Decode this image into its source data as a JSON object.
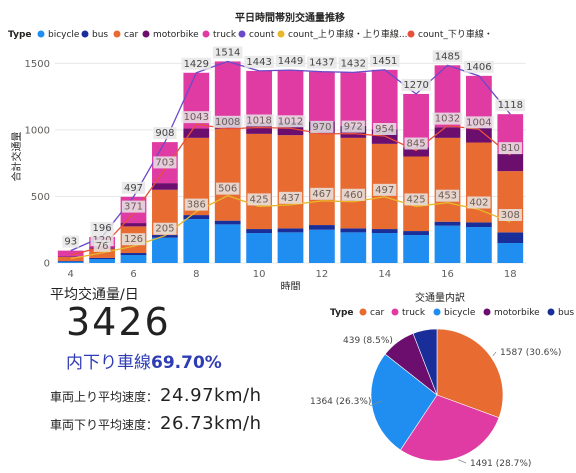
{
  "stack_chart": {
    "title": "平日時間帯別交通量推移",
    "legend_title": "Type",
    "legend": [
      {
        "label": "bicycle",
        "color": "#1f8ef0"
      },
      {
        "label": "bus",
        "color": "#1a2e9a"
      },
      {
        "label": "car",
        "color": "#e86b32"
      },
      {
        "label": "motorbike",
        "color": "#6b0e6e"
      },
      {
        "label": "truck",
        "color": "#e03aa3"
      },
      {
        "label": "count",
        "color": "#6b4ac8"
      },
      {
        "label": "count_上り車線・上り車線...",
        "color": "#e8b62a"
      },
      {
        "label": "count_下り車線・",
        "color": "#e8503a"
      }
    ],
    "ylabel": "合計交通量",
    "xlabel": "時間"
  },
  "chart_data": [
    {
      "type": "bar",
      "title": "平日時間帯別交通量推移",
      "xlabel": "時間",
      "ylabel": "合計交通量",
      "ylim": [
        0,
        1600
      ],
      "yticks": [
        0,
        500,
        1000,
        1500
      ],
      "xticks": [
        4,
        6,
        8,
        10,
        12,
        14,
        16,
        18
      ],
      "x": [
        4,
        5,
        6,
        7,
        8,
        9,
        10,
        11,
        12,
        13,
        14,
        15,
        16,
        17,
        18
      ],
      "stacked": true,
      "series": [
        {
          "name": "bicycle",
          "color": "#1f8ef0",
          "values": [
            10,
            30,
            60,
            190,
            330,
            290,
            225,
            230,
            250,
            230,
            225,
            210,
            280,
            270,
            150
          ]
        },
        {
          "name": "bus",
          "color": "#1a2e9a",
          "values": [
            5,
            8,
            15,
            20,
            30,
            28,
            30,
            30,
            35,
            30,
            30,
            30,
            30,
            35,
            80
          ]
        },
        {
          "name": "car",
          "color": "#e86b32",
          "values": [
            30,
            70,
            200,
            340,
            580,
            690,
            715,
            700,
            690,
            680,
            640,
            560,
            630,
            600,
            460
          ]
        },
        {
          "name": "motorbike",
          "color": "#6b0e6e",
          "values": [
            5,
            10,
            25,
            50,
            70,
            90,
            80,
            100,
            90,
            90,
            110,
            70,
            80,
            110,
            130
          ]
        },
        {
          "name": "truck",
          "color": "#e03aa3",
          "values": [
            43,
            78,
            197,
            308,
            419,
            416,
            393,
            389,
            372,
            402,
            446,
            400,
            465,
            391,
            298
          ]
        }
      ],
      "totals_label": [
        93,
        196,
        497,
        908,
        1429,
        1514,
        1443,
        1449,
        1437,
        1432,
        1451,
        1270,
        1485,
        1406,
        1118
      ],
      "lines": [
        {
          "name": "count",
          "color": "#6b4ac8",
          "values": [
            93,
            196,
            497,
            908,
            1429,
            1514,
            1443,
            1449,
            1437,
            1432,
            1451,
            1270,
            1485,
            1406,
            1118
          ]
        },
        {
          "name": "count_下り車線・",
          "color": "#e8503a",
          "values": [
            60,
            120,
            371,
            703,
            1043,
            1008,
            1018,
            1012,
            970,
            972,
            954,
            845,
            1032,
            1004,
            810
          ]
        },
        {
          "name": "count_上り車線・上り車線...",
          "color": "#e8b62a",
          "values": [
            33,
            76,
            126,
            205,
            386,
            506,
            425,
            437,
            467,
            460,
            497,
            425,
            453,
            402,
            308
          ]
        }
      ]
    },
    {
      "type": "pie",
      "title": "交通量内訳",
      "legend_title": "Type",
      "slices": [
        {
          "label": "car",
          "value": 1587,
          "percent": "30.6%",
          "color": "#e86b32"
        },
        {
          "label": "truck",
          "value": 1491,
          "percent": "28.7%",
          "color": "#e03aa3"
        },
        {
          "label": "bicycle",
          "value": 1364,
          "percent": "26.3%",
          "color": "#1f8ef0"
        },
        {
          "label": "motorbike",
          "value": 439,
          "percent": "8.5%",
          "color": "#6b0e6e"
        },
        {
          "label": "bus",
          "value": 306,
          "percent": "",
          "color": "#1a2e9a"
        }
      ],
      "slice_labels": [
        "1587 (30.6%)",
        "1491 (28.7%)",
        "1364 (26.3%)",
        "439 (8.5%)"
      ]
    }
  ],
  "kpi": {
    "label": "平均交通量/日",
    "value": "3426",
    "ratio_prefix": "内下り車線",
    "ratio_value": "69.70%"
  },
  "speeds": [
    {
      "label": "車両上り平均速度：",
      "value": "24.97km/h"
    },
    {
      "label": "車両下り平均速度：",
      "value": "26.73km/h"
    }
  ]
}
